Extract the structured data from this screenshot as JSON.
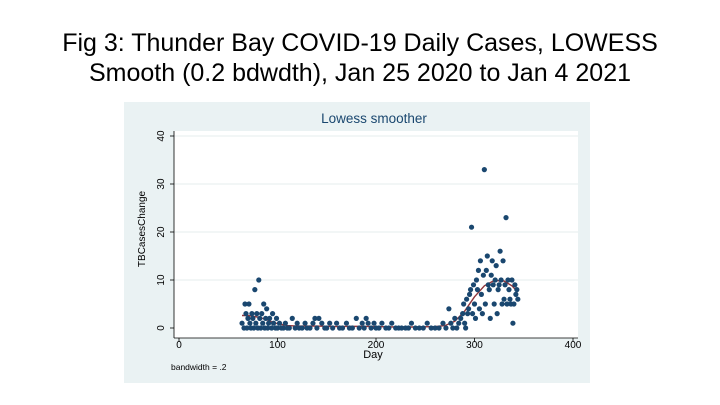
{
  "slide": {
    "title_line1": "Fig 3: Thunder Bay COVID-19 Daily Cases, LOWESS",
    "title_line2": "Smooth (0.2 bdwdth), Jan 25 2020 to Jan 4 2021"
  },
  "chart_data": {
    "type": "scatter",
    "title": "Lowess smoother",
    "xlabel": "Day",
    "ylabel": "TBCasesChange",
    "note": "bandwidth = .2",
    "xlim": [
      0,
      400
    ],
    "ylim": [
      0,
      40
    ],
    "xticks": [
      0,
      100,
      200,
      300,
      400
    ],
    "yticks": [
      0,
      10,
      20,
      30,
      40
    ],
    "grid": true,
    "colors": {
      "points": "#1a476f",
      "smooth": "#90353b",
      "background": "#eaf2f3",
      "plot": "#ffffff",
      "title": "#1a476f"
    },
    "series": [
      {
        "kind": "points",
        "points": [
          [
            64,
            1
          ],
          [
            66,
            0
          ],
          [
            67,
            5
          ],
          [
            68,
            3
          ],
          [
            69,
            0
          ],
          [
            70,
            2
          ],
          [
            71,
            5
          ],
          [
            72,
            1
          ],
          [
            73,
            0
          ],
          [
            74,
            3
          ],
          [
            75,
            2
          ],
          [
            76,
            0
          ],
          [
            77,
            8
          ],
          [
            78,
            1
          ],
          [
            79,
            3
          ],
          [
            80,
            0
          ],
          [
            81,
            10
          ],
          [
            82,
            2
          ],
          [
            83,
            0
          ],
          [
            84,
            3
          ],
          [
            85,
            1
          ],
          [
            86,
            5
          ],
          [
            87,
            0
          ],
          [
            88,
            2
          ],
          [
            89,
            4
          ],
          [
            90,
            0
          ],
          [
            91,
            1
          ],
          [
            92,
            2
          ],
          [
            94,
            0
          ],
          [
            95,
            3
          ],
          [
            96,
            1
          ],
          [
            98,
            0
          ],
          [
            99,
            2
          ],
          [
            100,
            0
          ],
          [
            102,
            1
          ],
          [
            104,
            0
          ],
          [
            106,
            0
          ],
          [
            108,
            1
          ],
          [
            110,
            0
          ],
          [
            112,
            0
          ],
          [
            115,
            2
          ],
          [
            118,
            0
          ],
          [
            120,
            1
          ],
          [
            122,
            0
          ],
          [
            125,
            0
          ],
          [
            128,
            1
          ],
          [
            130,
            0
          ],
          [
            133,
            0
          ],
          [
            136,
            1
          ],
          [
            138,
            2
          ],
          [
            140,
            0
          ],
          [
            142,
            2
          ],
          [
            145,
            1
          ],
          [
            148,
            0
          ],
          [
            150,
            0
          ],
          [
            153,
            1
          ],
          [
            156,
            0
          ],
          [
            160,
            1
          ],
          [
            163,
            0
          ],
          [
            166,
            0
          ],
          [
            170,
            1
          ],
          [
            173,
            0
          ],
          [
            176,
            0
          ],
          [
            180,
            2
          ],
          [
            183,
            0
          ],
          [
            186,
            1
          ],
          [
            188,
            0
          ],
          [
            190,
            2
          ],
          [
            192,
            1
          ],
          [
            195,
            0
          ],
          [
            198,
            1
          ],
          [
            200,
            0
          ],
          [
            203,
            0
          ],
          [
            206,
            1
          ],
          [
            210,
            0
          ],
          [
            213,
            0
          ],
          [
            216,
            1
          ],
          [
            220,
            0
          ],
          [
            223,
            0
          ],
          [
            226,
            0
          ],
          [
            230,
            0
          ],
          [
            233,
            0
          ],
          [
            236,
            1
          ],
          [
            240,
            0
          ],
          [
            244,
            0
          ],
          [
            248,
            0
          ],
          [
            252,
            1
          ],
          [
            256,
            0
          ],
          [
            260,
            0
          ],
          [
            264,
            0
          ],
          [
            268,
            1
          ],
          [
            271,
            0
          ],
          [
            274,
            4
          ],
          [
            276,
            1
          ],
          [
            278,
            0
          ],
          [
            280,
            2
          ],
          [
            282,
            0
          ],
          [
            284,
            1
          ],
          [
            286,
            2
          ],
          [
            288,
            3
          ],
          [
            289,
            5
          ],
          [
            290,
            1
          ],
          [
            291,
            0
          ],
          [
            292,
            6
          ],
          [
            293,
            3
          ],
          [
            294,
            4
          ],
          [
            295,
            7
          ],
          [
            296,
            8
          ],
          [
            297,
            21
          ],
          [
            298,
            3
          ],
          [
            299,
            9
          ],
          [
            300,
            5
          ],
          [
            301,
            2
          ],
          [
            302,
            10
          ],
          [
            303,
            8
          ],
          [
            304,
            12
          ],
          [
            305,
            4
          ],
          [
            306,
            14
          ],
          [
            307,
            7
          ],
          [
            308,
            3
          ],
          [
            309,
            11
          ],
          [
            310,
            33
          ],
          [
            311,
            5
          ],
          [
            312,
            12
          ],
          [
            313,
            15
          ],
          [
            314,
            9
          ],
          [
            315,
            8
          ],
          [
            316,
            2
          ],
          [
            317,
            11
          ],
          [
            318,
            14
          ],
          [
            319,
            9
          ],
          [
            320,
            5
          ],
          [
            321,
            10
          ],
          [
            322,
            13
          ],
          [
            323,
            3
          ],
          [
            324,
            8
          ],
          [
            325,
            9
          ],
          [
            326,
            16
          ],
          [
            327,
            10
          ],
          [
            328,
            5
          ],
          [
            329,
            14
          ],
          [
            330,
            6
          ],
          [
            331,
            9
          ],
          [
            332,
            23
          ],
          [
            333,
            5
          ],
          [
            334,
            10
          ],
          [
            335,
            8
          ],
          [
            336,
            6
          ],
          [
            337,
            5
          ],
          [
            338,
            10
          ],
          [
            339,
            1
          ],
          [
            340,
            5
          ],
          [
            341,
            9
          ],
          [
            342,
            7
          ],
          [
            343,
            8
          ],
          [
            344,
            6
          ]
        ]
      },
      {
        "kind": "lowess",
        "points": [
          [
            64,
            2.6
          ],
          [
            70,
            2.6
          ],
          [
            76,
            2.4
          ],
          [
            82,
            2.2
          ],
          [
            88,
            1.8
          ],
          [
            94,
            1.3
          ],
          [
            100,
            0.9
          ],
          [
            110,
            0.5
          ],
          [
            120,
            0.4
          ],
          [
            140,
            0.4
          ],
          [
            160,
            0.3
          ],
          [
            180,
            0.35
          ],
          [
            200,
            0.3
          ],
          [
            220,
            0.2
          ],
          [
            240,
            0.2
          ],
          [
            260,
            0.3
          ],
          [
            270,
            0.5
          ],
          [
            280,
            1.4
          ],
          [
            290,
            3.5
          ],
          [
            300,
            6.5
          ],
          [
            310,
            8.8
          ],
          [
            320,
            9.9
          ],
          [
            330,
            9.8
          ],
          [
            338,
            8.8
          ],
          [
            344,
            7.5
          ]
        ]
      }
    ]
  }
}
